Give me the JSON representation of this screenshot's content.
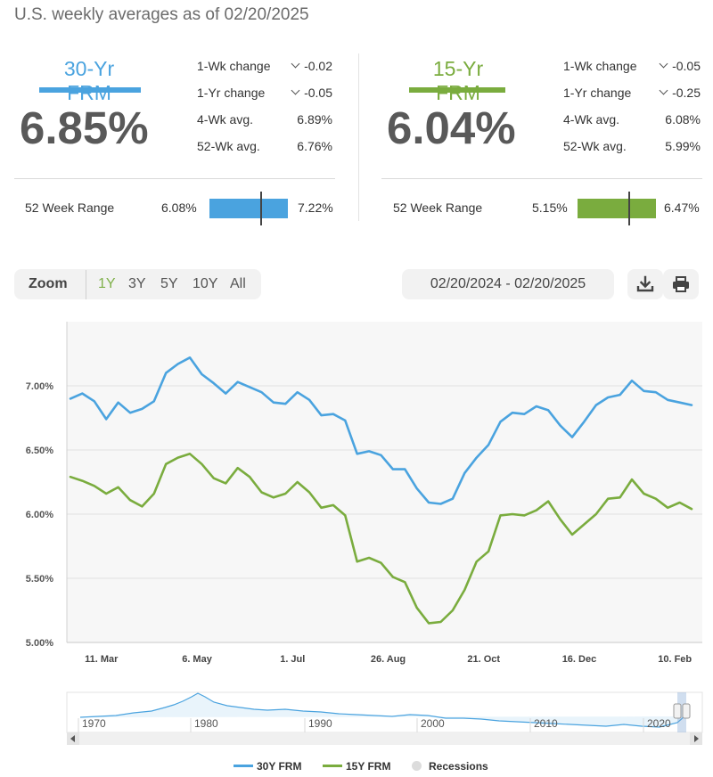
{
  "subtitle": "U.S. weekly averages as of 02/20/2025",
  "cards": [
    {
      "name": "30-Yr FRM",
      "rate": "6.85%",
      "color": "#4aa3df",
      "one_wk_change_label": "1-Wk change",
      "one_wk_change": "-0.02",
      "one_yr_change_label": "1-Yr change",
      "one_yr_change": "-0.05",
      "four_wk_avg_label": "4-Wk avg.",
      "four_wk_avg": "6.89%",
      "fiftytwo_wk_avg_label": "52-Wk avg.",
      "fiftytwo_wk_avg": "6.76%",
      "range_label": "52 Week Range",
      "range_low": "6.08%",
      "range_high": "7.22%"
    },
    {
      "name": "15-Yr FRM",
      "rate": "6.04%",
      "color": "#7aac3e",
      "one_wk_change_label": "1-Wk change",
      "one_wk_change": "-0.05",
      "one_yr_change_label": "1-Yr change",
      "one_yr_change": "-0.25",
      "four_wk_avg_label": "4-Wk avg.",
      "four_wk_avg": "6.08%",
      "fiftytwo_wk_avg_label": "52-Wk avg.",
      "fiftytwo_wk_avg": "5.99%",
      "range_label": "52 Week Range",
      "range_low": "5.15%",
      "range_high": "6.47%"
    }
  ],
  "toolbar": {
    "zoom_label": "Zoom",
    "zoom_options": [
      "1Y",
      "3Y",
      "5Y",
      "10Y",
      "All"
    ],
    "active_zoom": "1Y",
    "date_range": "02/20/2024 - 02/20/2025",
    "download_icon": "download-icon",
    "print_icon": "printer-icon"
  },
  "navigator": {
    "year_labels": [
      "1970",
      "1980",
      "1990",
      "2000",
      "2010",
      "2020"
    ]
  },
  "legend": {
    "items": [
      {
        "label": "30Y FRM",
        "color": "#4aa3df"
      },
      {
        "label": "15Y FRM",
        "color": "#7aac3e"
      },
      {
        "label": "Recessions",
        "color": "#dcdcdc"
      }
    ]
  },
  "chart_data": {
    "type": "line",
    "x_tick_labels": [
      "11. Mar",
      "6. May",
      "1. Jul",
      "26. Aug",
      "21. Oct",
      "16. Dec",
      "10. Feb"
    ],
    "y_tick_labels": [
      "5.00%",
      "5.50%",
      "6.00%",
      "6.50%",
      "7.00%"
    ],
    "ylim": [
      5.0,
      7.5
    ],
    "x_start_date": "2024-02-22",
    "x_end_date": "2025-02-20",
    "grid": true,
    "legend_position": "bottom-center",
    "series": [
      {
        "name": "30Y FRM",
        "color": "#4aa3df",
        "values": [
          6.9,
          6.94,
          6.88,
          6.74,
          6.87,
          6.79,
          6.82,
          6.88,
          7.1,
          7.17,
          7.22,
          7.09,
          7.02,
          6.94,
          7.03,
          6.99,
          6.95,
          6.87,
          6.86,
          6.95,
          6.89,
          6.77,
          6.78,
          6.73,
          6.47,
          6.49,
          6.46,
          6.35,
          6.35,
          6.2,
          6.09,
          6.08,
          6.12,
          6.32,
          6.44,
          6.54,
          6.72,
          6.79,
          6.78,
          6.84,
          6.81,
          6.69,
          6.6,
          6.72,
          6.85,
          6.91,
          6.93,
          7.04,
          6.96,
          6.95,
          6.89,
          6.87,
          6.85
        ]
      },
      {
        "name": "15Y FRM",
        "color": "#7aac3e",
        "values": [
          6.29,
          6.26,
          6.22,
          6.16,
          6.21,
          6.11,
          6.06,
          6.16,
          6.39,
          6.44,
          6.47,
          6.39,
          6.28,
          6.24,
          6.36,
          6.29,
          6.17,
          6.13,
          6.16,
          6.25,
          6.17,
          6.05,
          6.07,
          5.99,
          5.63,
          5.66,
          5.62,
          5.51,
          5.47,
          5.27,
          5.15,
          5.16,
          5.25,
          5.41,
          5.63,
          5.71,
          5.99,
          6.0,
          5.99,
          6.03,
          6.1,
          5.96,
          5.84,
          5.92,
          6.0,
          6.12,
          6.13,
          6.27,
          6.16,
          6.12,
          6.05,
          6.09,
          6.04
        ]
      }
    ]
  }
}
